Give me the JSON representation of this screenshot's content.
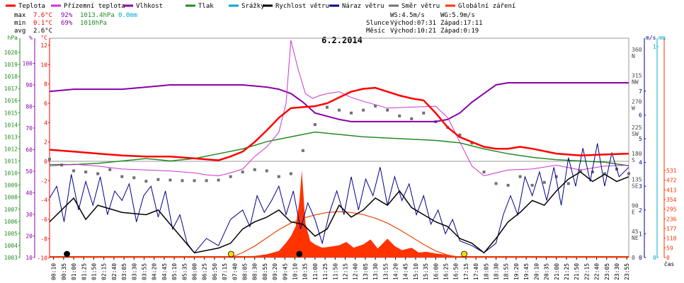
{
  "chart_data": {
    "type": "line",
    "title": "6.2.2014",
    "legend": [
      {
        "name": "Teplota",
        "color": "#ff0000"
      },
      {
        "name": "Přízemní teplota",
        "color": "#cc33cc"
      },
      {
        "name": "Vlhkost",
        "color": "#8800aa"
      },
      {
        "name": "Tlak",
        "color": "#228b22"
      },
      {
        "name": "Srážky",
        "color": "#00aacc"
      },
      {
        "name": "Rychlost větru",
        "color": "#000000"
      },
      {
        "name": "Náraz větru",
        "color": "#000088"
      },
      {
        "name": "Směr větru",
        "color": "#707070"
      },
      {
        "name": "Globální záření",
        "color": "#ff3300"
      }
    ],
    "stats": {
      "max": {
        "label": "max",
        "temp": "7.6°C",
        "hum": "92%",
        "press": "1013.4hPa",
        "rain": "0.0mm"
      },
      "min": {
        "label": "min",
        "temp": "0.1°C",
        "hum": "69%",
        "press": "1010hPa"
      },
      "avg": {
        "label": "avg",
        "temp": "2.6°C"
      }
    },
    "info": {
      "ws": "WS:4.5m/s",
      "wg": "WG:5.9m/s",
      "sun": "Slunce",
      "sunrise": "Východ:07:31",
      "sunset": "Západ:17:11",
      "moon": "Měsíc",
      "moonrise": "Východ:10:21",
      "moonset": "Západ:0:19"
    },
    "axes": {
      "hpa": {
        "label": "hPa",
        "color": "#228b22",
        "ticks": [
          "1020",
          "1019",
          "1018",
          "1017",
          "1016",
          "1015",
          "1014",
          "1013",
          "1012",
          "1011",
          "1010",
          "1009",
          "1008",
          "1007",
          "1006",
          "1005",
          "1004",
          "1003"
        ]
      },
      "pct": {
        "label": "%",
        "color": "#8800aa",
        "ticks": [
          "100",
          "90",
          "80",
          "70",
          "60",
          "50",
          "40",
          "30",
          "20",
          "10"
        ]
      },
      "degc": {
        "label": "°C",
        "color": "#ff0000",
        "ticks": [
          "12",
          "10",
          "8",
          "6",
          "4",
          "2",
          "0",
          "-2",
          "-4",
          "-6",
          "-8",
          "-10"
        ]
      },
      "ms": {
        "label": "m/s",
        "ticks": [
          "7",
          "6",
          "5",
          "4",
          "3",
          "2",
          "1",
          "0"
        ]
      },
      "mm": {
        "label": "mm",
        "ticks": [
          "1",
          "0"
        ]
      },
      "dir": {
        "ticks": [
          "360",
          "N",
          "315",
          "NW",
          "270",
          "W",
          "225",
          "SW",
          "180",
          "S",
          "135",
          "SE",
          "90",
          "E",
          "45",
          "NE",
          "0"
        ]
      },
      "rad": {
        "color": "#ff3300",
        "ticks": [
          "531",
          "472",
          "413",
          "354",
          "295",
          "236",
          "177",
          "118",
          "59",
          "0"
        ]
      }
    },
    "xlabel": "čas",
    "x_ticks": [
      "00:10",
      "00:35",
      "01:00",
      "01:25",
      "01:50",
      "02:15",
      "02:40",
      "03:05",
      "03:30",
      "03:55",
      "04:20",
      "04:45",
      "05:10",
      "05:35",
      "06:00",
      "06:25",
      "06:50",
      "07:15",
      "07:40",
      "08:05",
      "08:30",
      "08:55",
      "09:20",
      "09:45",
      "10:10",
      "10:35",
      "11:00",
      "11:25",
      "11:50",
      "12:15",
      "12:40",
      "13:05",
      "13:30",
      "13:55",
      "14:20",
      "14:45",
      "15:10",
      "15:35",
      "16:00",
      "16:25",
      "16:50",
      "17:15",
      "17:40",
      "18:05",
      "18:30",
      "18:55",
      "19:20",
      "19:45",
      "20:10",
      "20:35",
      "21:00",
      "21:25",
      "21:50",
      "22:15",
      "22:40",
      "23:05",
      "23:30",
      "23:55"
    ],
    "series": {
      "temperature_c": {
        "t": [
          0,
          1,
          2,
          3,
          4,
          5,
          6,
          7,
          7.5,
          8,
          8.5,
          9,
          9.5,
          10,
          10.5,
          11,
          11.5,
          12,
          12.5,
          13,
          13.5,
          14,
          14.5,
          15,
          15.5,
          16,
          16.5,
          17,
          17.5,
          18,
          18.5,
          19,
          19.5,
          20,
          21,
          22,
          23,
          24
        ],
        "v": [
          1.2,
          1.0,
          0.8,
          0.6,
          0.5,
          0.5,
          0.3,
          0.1,
          0.5,
          1.0,
          2.0,
          3.2,
          4.5,
          5.5,
          5.6,
          5.7,
          6.0,
          6.6,
          7.2,
          7.5,
          7.6,
          7.2,
          6.8,
          6.5,
          6.3,
          5.0,
          3.5,
          2.5,
          2.0,
          1.5,
          1.3,
          1.3,
          1.5,
          1.3,
          0.8,
          0.6,
          0.7,
          0.8
        ]
      },
      "ground_temp_c": {
        "t": [
          0,
          1,
          2,
          3,
          4,
          5,
          6,
          6.5,
          7,
          7.5,
          8,
          8.5,
          9,
          9.5,
          9.8,
          10,
          10.3,
          10.6,
          10.9,
          11.2,
          11.5,
          12,
          12.5,
          13,
          14,
          15,
          16,
          16.5,
          17,
          17.5,
          18,
          18.5,
          19,
          20,
          21,
          22,
          23,
          24
        ],
        "v": [
          -0.5,
          -0.3,
          -0.5,
          -0.8,
          -0.9,
          -1.0,
          -1.2,
          -1.4,
          -1.5,
          -1.2,
          -0.8,
          0.5,
          1.5,
          3.0,
          6.0,
          12.5,
          9.5,
          7.0,
          6.5,
          6.8,
          7.0,
          7.2,
          6.6,
          6.2,
          5.5,
          5.6,
          5.7,
          4.5,
          2.0,
          -0.5,
          -1.5,
          -1.2,
          -0.9,
          -0.8,
          -0.4,
          -0.9,
          -0.5,
          -0.4
        ]
      },
      "humidity_pct": {
        "t": [
          0,
          1,
          2,
          3,
          4,
          5,
          6,
          7,
          8,
          9,
          9.5,
          10,
          10.5,
          11,
          12,
          12.5,
          13,
          14,
          15,
          16,
          16.5,
          17,
          17.5,
          18,
          18.5,
          19,
          20,
          21,
          22,
          23,
          24
        ],
        "v": [
          87,
          88,
          88,
          88,
          89,
          90,
          90,
          90,
          90,
          89,
          88,
          86,
          82,
          77,
          74,
          73,
          73,
          73,
          73,
          73,
          74,
          77,
          82,
          86,
          90,
          91,
          91,
          91,
          91,
          91,
          91
        ]
      },
      "pressure_hpa": {
        "t": [
          0,
          1,
          2,
          3,
          4,
          4.5,
          5,
          6,
          7,
          8,
          9,
          10,
          11,
          12,
          13,
          14,
          15,
          16,
          17,
          18,
          19,
          20,
          21,
          22,
          23,
          24
        ],
        "v": [
          1010.7,
          1010.7,
          1010.8,
          1011.0,
          1011.2,
          1011.1,
          1011.0,
          1011.2,
          1011.6,
          1012.0,
          1012.6,
          1013.0,
          1013.4,
          1013.2,
          1013.0,
          1012.9,
          1012.8,
          1012.7,
          1012.5,
          1012.0,
          1011.6,
          1011.3,
          1011.1,
          1011.0,
          1010.9,
          1010.6
        ]
      },
      "wind_speed_ms": {
        "t": [
          0,
          0.5,
          1,
          1.5,
          2,
          3,
          4,
          4.5,
          5,
          5.5,
          6,
          7,
          7.5,
          8,
          8.5,
          9,
          9.5,
          10,
          10.5,
          11,
          11.5,
          12,
          12.5,
          13,
          13.5,
          14,
          14.5,
          15,
          15.5,
          16,
          16.5,
          17,
          17.5,
          18,
          18.5,
          19,
          19.5,
          20,
          20.5,
          21,
          21.5,
          22,
          22.5,
          23,
          23.5,
          24
        ],
        "v": [
          1.5,
          2.0,
          2.5,
          1.6,
          2.2,
          1.9,
          1.8,
          2.0,
          1.4,
          0.8,
          0.2,
          0.4,
          0.6,
          1.2,
          1.5,
          1.7,
          2.0,
          1.5,
          1.4,
          0.9,
          1.2,
          2.2,
          1.7,
          2.0,
          2.5,
          2.2,
          2.8,
          2.1,
          1.8,
          1.5,
          1.3,
          0.8,
          0.6,
          0.2,
          0.8,
          1.5,
          1.9,
          2.4,
          2.2,
          2.8,
          3.3,
          3.6,
          3.2,
          3.5,
          3.2,
          3.4
        ]
      },
      "wind_gust_ms": {
        "t": [
          0,
          0.3,
          0.6,
          0.9,
          1.2,
          1.5,
          1.8,
          2.1,
          2.4,
          2.7,
          3,
          3.3,
          3.6,
          3.9,
          4.2,
          4.5,
          4.8,
          5.1,
          5.4,
          5.7,
          6,
          6.5,
          7,
          7.5,
          8,
          8.3,
          8.6,
          8.9,
          9.2,
          9.5,
          9.8,
          10.1,
          10.4,
          10.7,
          11,
          11.3,
          11.6,
          11.9,
          12.2,
          12.5,
          12.8,
          13.1,
          13.4,
          13.7,
          14,
          14.3,
          14.6,
          14.9,
          15.2,
          15.5,
          15.8,
          16.1,
          16.4,
          16.7,
          17,
          17.5,
          18,
          18.5,
          18.8,
          19.1,
          19.4,
          19.7,
          20,
          20.3,
          20.6,
          20.9,
          21.2,
          21.5,
          21.8,
          22.1,
          22.4,
          22.7,
          23,
          23.3,
          23.6,
          24
        ],
        "v": [
          2.5,
          3.0,
          1.5,
          3.5,
          2.0,
          3.2,
          2.2,
          3.4,
          1.8,
          2.8,
          2.4,
          3.1,
          1.5,
          2.6,
          3.0,
          1.7,
          2.8,
          1.2,
          1.8,
          0.6,
          0.2,
          0.8,
          0.5,
          1.6,
          2.0,
          1.3,
          2.6,
          1.9,
          2.4,
          3.0,
          1.8,
          2.8,
          1.2,
          2.3,
          1.6,
          0.6,
          1.9,
          2.8,
          1.8,
          3.4,
          2.0,
          3.3,
          2.6,
          3.8,
          2.2,
          3.4,
          2.4,
          3.1,
          1.8,
          2.6,
          1.4,
          2.0,
          1.0,
          1.6,
          0.7,
          0.5,
          0.2,
          0.6,
          1.8,
          2.6,
          1.8,
          3.4,
          2.6,
          3.6,
          2.4,
          3.8,
          2.2,
          4.2,
          3.0,
          4.6,
          3.2,
          4.8,
          3.0,
          4.4,
          3.4,
          3.8
        ]
      },
      "radiation_wm2": {
        "t": [
          7.5,
          8,
          8.5,
          9,
          9.5,
          9.8,
          10,
          10.2,
          10.35,
          10.45,
          10.6,
          10.8,
          11,
          11.3,
          11.6,
          12,
          12.3,
          12.6,
          13,
          13.3,
          13.6,
          14,
          14.3,
          14.6,
          15,
          15.3,
          15.6,
          16,
          16.3,
          16.6,
          17,
          17.2
        ],
        "v": [
          0,
          5,
          10,
          20,
          40,
          90,
          130,
          190,
          340,
          531,
          210,
          100,
          80,
          60,
          65,
          75,
          95,
          60,
          80,
          110,
          55,
          115,
          70,
          45,
          60,
          30,
          35,
          25,
          20,
          10,
          4,
          0
        ]
      },
      "radiation_clear_sky_wm2": {
        "t": [
          7.5,
          8,
          8.5,
          9,
          9.5,
          10,
          10.5,
          11,
          11.5,
          12,
          12.5,
          13,
          13.5,
          14,
          14.5,
          15,
          15.5,
          16,
          16.5,
          17,
          17.2
        ],
        "v": [
          0,
          30,
          70,
          120,
          170,
          210,
          240,
          260,
          275,
          280,
          275,
          262,
          240,
          210,
          170,
          125,
          80,
          40,
          15,
          2,
          0
        ]
      },
      "wind_dir_deg": {
        "t": [
          0,
          0.5,
          1,
          1.5,
          2,
          2.5,
          3,
          3.5,
          4,
          4.5,
          5,
          5.5,
          6,
          6.5,
          7,
          7.5,
          8,
          8.5,
          9,
          9.5,
          10,
          10.5,
          11,
          11.5,
          12,
          12.5,
          13,
          13.5,
          14,
          14.5,
          15,
          15.5,
          16,
          16.5,
          17,
          17.5,
          18,
          18.5,
          19,
          19.5,
          20,
          20.5,
          21,
          21.5,
          22,
          22.5,
          23,
          23.5,
          24
        ],
        "v": [
          170,
          160,
          150,
          148,
          145,
          152,
          140,
          138,
          132,
          135,
          134,
          133,
          133,
          133,
          134,
          140,
          148,
          152,
          150,
          140,
          145,
          185,
          230,
          260,
          255,
          250,
          255,
          262,
          255,
          245,
          240,
          250,
          235,
          225,
          212,
          198,
          148,
          128,
          125,
          140,
          125,
          130,
          140,
          128,
          150,
          148,
          145,
          153,
          145
        ]
      }
    }
  }
}
